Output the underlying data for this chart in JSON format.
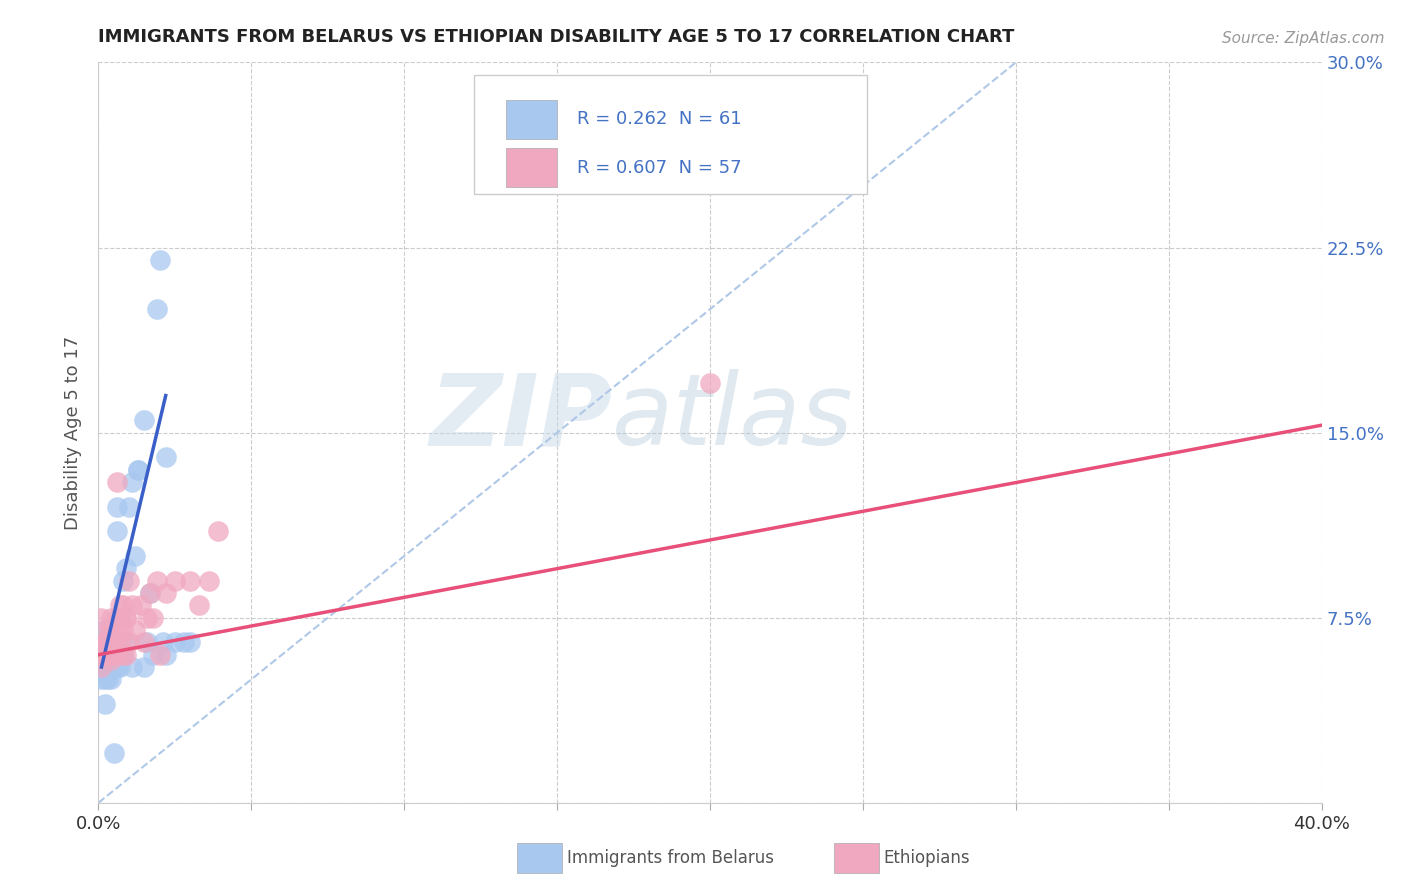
{
  "title": "IMMIGRANTS FROM BELARUS VS ETHIOPIAN DISABILITY AGE 5 TO 17 CORRELATION CHART",
  "source": "Source: ZipAtlas.com",
  "ylabel": "Disability Age 5 to 17",
  "xlim": [
    0.0,
    0.4
  ],
  "ylim": [
    0.0,
    0.3
  ],
  "xticks": [
    0.0,
    0.05,
    0.1,
    0.15,
    0.2,
    0.25,
    0.3,
    0.35,
    0.4
  ],
  "xtick_labels": [
    "0.0%",
    "",
    "",
    "",
    "",
    "",
    "",
    "",
    "40.0%"
  ],
  "yticks": [
    0.0,
    0.075,
    0.15,
    0.225,
    0.3
  ],
  "ytick_labels_right": [
    "",
    "7.5%",
    "15.0%",
    "22.5%",
    "30.0%"
  ],
  "legend_text1": "R = 0.262  N = 61",
  "legend_text2": "R = 0.607  N = 57",
  "color_belarus": "#a8c8f0",
  "color_ethiopia": "#f0a8c0",
  "color_line_belarus": "#3a5fc8",
  "color_line_ethiopia": "#e8507a",
  "watermark_zip": "ZIP",
  "watermark_atlas": "atlas",
  "background_color": "#ffffff",
  "grid_color": "#cccccc",
  "title_color": "#222222",
  "axis_label_color": "#555555",
  "tick_color_right": "#4472c4",
  "belarus_scatter": [
    [
      0.001,
      0.055
    ],
    [
      0.001,
      0.05
    ],
    [
      0.002,
      0.07
    ],
    [
      0.002,
      0.05
    ],
    [
      0.002,
      0.04
    ],
    [
      0.002,
      0.065
    ],
    [
      0.003,
      0.06
    ],
    [
      0.003,
      0.06
    ],
    [
      0.003,
      0.055
    ],
    [
      0.003,
      0.053
    ],
    [
      0.003,
      0.06
    ],
    [
      0.003,
      0.058
    ],
    [
      0.003,
      0.055
    ],
    [
      0.003,
      0.065
    ],
    [
      0.003,
      0.05
    ],
    [
      0.003,
      0.06
    ],
    [
      0.004,
      0.06
    ],
    [
      0.004,
      0.06
    ],
    [
      0.004,
      0.07
    ],
    [
      0.004,
      0.05
    ],
    [
      0.004,
      0.055
    ],
    [
      0.004,
      0.06
    ],
    [
      0.004,
      0.055
    ],
    [
      0.004,
      0.06
    ],
    [
      0.005,
      0.055
    ],
    [
      0.005,
      0.055
    ],
    [
      0.005,
      0.02
    ],
    [
      0.005,
      0.065
    ],
    [
      0.005,
      0.06
    ],
    [
      0.005,
      0.058
    ],
    [
      0.006,
      0.11
    ],
    [
      0.006,
      0.055
    ],
    [
      0.006,
      0.12
    ],
    [
      0.006,
      0.055
    ],
    [
      0.007,
      0.055
    ],
    [
      0.007,
      0.075
    ],
    [
      0.007,
      0.06
    ],
    [
      0.008,
      0.06
    ],
    [
      0.008,
      0.06
    ],
    [
      0.008,
      0.09
    ],
    [
      0.009,
      0.095
    ],
    [
      0.009,
      0.065
    ],
    [
      0.01,
      0.12
    ],
    [
      0.011,
      0.13
    ],
    [
      0.011,
      0.055
    ],
    [
      0.012,
      0.1
    ],
    [
      0.013,
      0.135
    ],
    [
      0.013,
      0.135
    ],
    [
      0.015,
      0.155
    ],
    [
      0.015,
      0.055
    ],
    [
      0.016,
      0.065
    ],
    [
      0.017,
      0.085
    ],
    [
      0.018,
      0.06
    ],
    [
      0.019,
      0.2
    ],
    [
      0.02,
      0.22
    ],
    [
      0.021,
      0.065
    ],
    [
      0.022,
      0.06
    ],
    [
      0.022,
      0.14
    ],
    [
      0.025,
      0.065
    ],
    [
      0.028,
      0.065
    ],
    [
      0.03,
      0.065
    ]
  ],
  "ethiopia_scatter": [
    [
      0.001,
      0.06
    ],
    [
      0.001,
      0.055
    ],
    [
      0.001,
      0.075
    ],
    [
      0.002,
      0.065
    ],
    [
      0.002,
      0.065
    ],
    [
      0.002,
      0.06
    ],
    [
      0.002,
      0.06
    ],
    [
      0.002,
      0.065
    ],
    [
      0.002,
      0.065
    ],
    [
      0.002,
      0.065
    ],
    [
      0.003,
      0.07
    ],
    [
      0.003,
      0.06
    ],
    [
      0.003,
      0.06
    ],
    [
      0.003,
      0.06
    ],
    [
      0.003,
      0.065
    ],
    [
      0.004,
      0.058
    ],
    [
      0.004,
      0.06
    ],
    [
      0.004,
      0.06
    ],
    [
      0.004,
      0.07
    ],
    [
      0.004,
      0.07
    ],
    [
      0.004,
      0.075
    ],
    [
      0.005,
      0.06
    ],
    [
      0.005,
      0.065
    ],
    [
      0.005,
      0.07
    ],
    [
      0.005,
      0.065
    ],
    [
      0.005,
      0.065
    ],
    [
      0.006,
      0.13
    ],
    [
      0.006,
      0.075
    ],
    [
      0.006,
      0.07
    ],
    [
      0.006,
      0.06
    ],
    [
      0.007,
      0.075
    ],
    [
      0.007,
      0.065
    ],
    [
      0.007,
      0.08
    ],
    [
      0.008,
      0.07
    ],
    [
      0.008,
      0.08
    ],
    [
      0.008,
      0.06
    ],
    [
      0.009,
      0.075
    ],
    [
      0.009,
      0.06
    ],
    [
      0.009,
      0.075
    ],
    [
      0.01,
      0.09
    ],
    [
      0.01,
      0.065
    ],
    [
      0.011,
      0.08
    ],
    [
      0.012,
      0.07
    ],
    [
      0.014,
      0.08
    ],
    [
      0.015,
      0.065
    ],
    [
      0.016,
      0.075
    ],
    [
      0.017,
      0.085
    ],
    [
      0.018,
      0.075
    ],
    [
      0.019,
      0.09
    ],
    [
      0.02,
      0.06
    ],
    [
      0.022,
      0.085
    ],
    [
      0.025,
      0.09
    ],
    [
      0.03,
      0.09
    ],
    [
      0.033,
      0.08
    ],
    [
      0.036,
      0.09
    ],
    [
      0.039,
      0.11
    ],
    [
      0.2,
      0.17
    ]
  ],
  "belarus_line_x": [
    0.001,
    0.022
  ],
  "belarus_line_y": [
    0.055,
    0.165
  ],
  "ethiopia_line_x": [
    0.0,
    0.4
  ],
  "ethiopia_line_y": [
    0.06,
    0.153
  ],
  "diag_line_x": [
    0.0,
    0.3
  ],
  "diag_line_y": [
    0.0,
    0.3
  ]
}
